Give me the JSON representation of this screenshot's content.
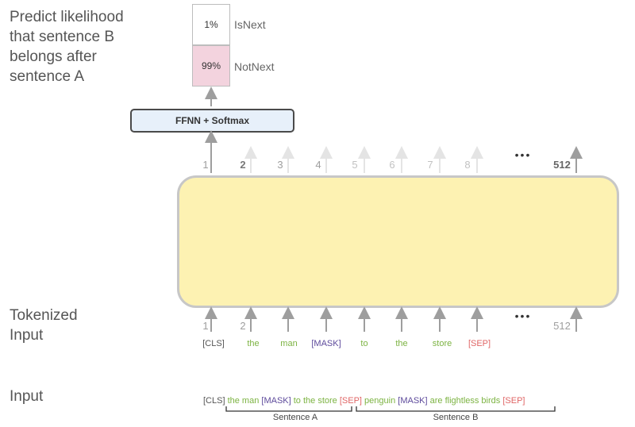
{
  "labels": {
    "predict": "Predict likelihood\nthat sentence B\nbelongs after\nsentence A",
    "tokenized": "Tokenized\nInput",
    "input": "Input"
  },
  "classifier": {
    "ffnn": "FFNN + Softmax",
    "outputs": [
      {
        "prob": "1%",
        "label": "IsNext",
        "color": "#ffffff"
      },
      {
        "prob": "99%",
        "label": "NotNext",
        "color": "#f3d3de"
      }
    ]
  },
  "output_positions": [
    "1",
    "2",
    "3",
    "4",
    "5",
    "6",
    "7",
    "8",
    "512"
  ],
  "input_positions": [
    "1",
    "2",
    "512"
  ],
  "ellipsis": "•••",
  "tokens": [
    {
      "text": "[CLS]",
      "color": "#555555"
    },
    {
      "text": "the",
      "color": "#7cb342"
    },
    {
      "text": "man",
      "color": "#7cb342"
    },
    {
      "text": "[MASK]",
      "color": "#5e4b9c"
    },
    {
      "text": "to",
      "color": "#7cb342"
    },
    {
      "text": "the",
      "color": "#7cb342"
    },
    {
      "text": "store",
      "color": "#7cb342"
    },
    {
      "text": "[SEP]",
      "color": "#e06666"
    }
  ],
  "input_sequence": [
    {
      "text": "[CLS]",
      "color": "#555555"
    },
    {
      "text": "the man",
      "color": "#7cb342"
    },
    {
      "text": "[MASK]",
      "color": "#5e4b9c"
    },
    {
      "text": "to the store",
      "color": "#7cb342"
    },
    {
      "text": "[SEP]",
      "color": "#e06666"
    },
    {
      "text": "penguin",
      "color": "#7cb342"
    },
    {
      "text": "[MASK]",
      "color": "#5e4b9c"
    },
    {
      "text": "are flightless birds",
      "color": "#7cb342"
    },
    {
      "text": "[SEP]",
      "color": "#e06666"
    }
  ],
  "sentences": {
    "a": "Sentence A",
    "b": "Sentence B"
  }
}
